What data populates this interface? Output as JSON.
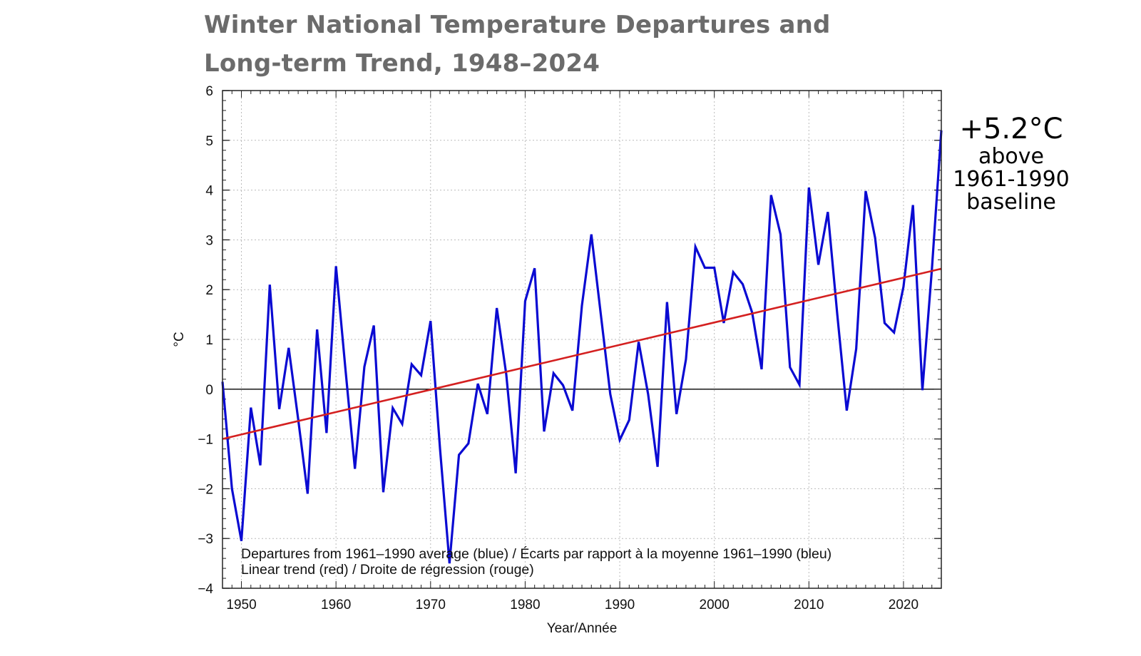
{
  "title_line1": "Winter National Temperature Departures and",
  "title_line2": "Long-term Trend, 1948–2024",
  "annotation": {
    "value": "+5.2°C",
    "line1": "above",
    "line2": "1961-1990",
    "line3": "baseline"
  },
  "chart_data": {
    "type": "line",
    "title": "Winter National Temperature Departures and Long-term Trend, 1948–2024",
    "xlabel": "Year/Année",
    "ylabel": "°C",
    "xlim": [
      1948,
      2024
    ],
    "ylim": [
      -4,
      6
    ],
    "xticks": [
      1950,
      1960,
      1970,
      1980,
      1990,
      2000,
      2010,
      2020
    ],
    "yticks": [
      -4,
      -3,
      -2,
      -1,
      0,
      1,
      2,
      3,
      4,
      5,
      6
    ],
    "ytick_labels": [
      "−4",
      "−3",
      "−2",
      "−1",
      "0",
      "1",
      "2",
      "3",
      "4",
      "5",
      "6"
    ],
    "grid": true,
    "legend_lines": [
      "Departures from 1961–1990 average (blue) / Écarts par rapport à la moyenne 1961–1990 (bleu)",
      "Linear trend (red) / Droite de régression (rouge)"
    ],
    "legend_position": "bottom-left",
    "colors": {
      "departures": "#0a0ad2",
      "trend": "#d42020",
      "zero": "#000000",
      "title": "#6b6b6b"
    },
    "x": [
      1948,
      1949,
      1950,
      1951,
      1952,
      1953,
      1954,
      1955,
      1956,
      1957,
      1958,
      1959,
      1960,
      1961,
      1962,
      1963,
      1964,
      1965,
      1966,
      1967,
      1968,
      1969,
      1970,
      1971,
      1972,
      1973,
      1974,
      1975,
      1976,
      1977,
      1978,
      1979,
      1980,
      1981,
      1982,
      1983,
      1984,
      1985,
      1986,
      1987,
      1988,
      1989,
      1990,
      1991,
      1992,
      1993,
      1994,
      1995,
      1996,
      1997,
      1998,
      1999,
      2000,
      2001,
      2002,
      2003,
      2004,
      2005,
      2006,
      2007,
      2008,
      2009,
      2010,
      2011,
      2012,
      2013,
      2014,
      2015,
      2016,
      2017,
      2018,
      2019,
      2020,
      2021,
      2022,
      2023,
      2024
    ],
    "series": [
      {
        "values": [
          0.15,
          -2.0,
          -3.05,
          -0.37,
          -1.53,
          2.1,
          -0.4,
          0.83,
          -0.6,
          -2.1,
          1.2,
          -0.88,
          2.47,
          0.4,
          -1.6,
          0.45,
          1.28,
          -2.07,
          -0.38,
          -0.7,
          0.5,
          0.28,
          1.37,
          -1.2,
          -3.5,
          -1.32,
          -1.09,
          0.11,
          -0.5,
          1.63,
          0.3,
          -1.69,
          1.77,
          2.43,
          -0.85,
          0.32,
          0.08,
          -0.43,
          1.68,
          3.11,
          1.5,
          -0.1,
          -1.02,
          -0.62,
          0.95,
          -0.1,
          -1.56,
          1.75,
          -0.5,
          0.6,
          2.86,
          2.44,
          2.44,
          1.33,
          2.35,
          2.11,
          1.54,
          0.4,
          3.9,
          3.11,
          0.44,
          0.09,
          4.05,
          2.5,
          3.56,
          1.5,
          -0.43,
          0.81,
          3.98,
          3.04,
          1.33,
          1.14,
          2.06,
          3.7,
          -0.02,
          2.4,
          5.2
        ]
      },
      {
        "trend_endpoints": [
          [
            1948,
            -1.0
          ],
          [
            2024,
            2.42
          ]
        ]
      }
    ]
  }
}
